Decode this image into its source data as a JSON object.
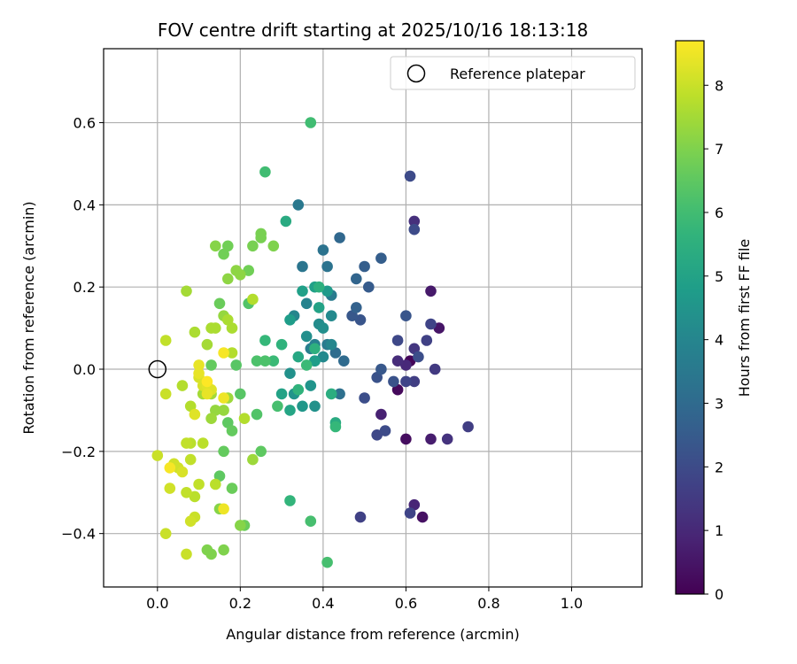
{
  "chart_data": {
    "type": "scatter",
    "title": "FOV centre drift starting at 2025/10/16 18:13:18",
    "xlabel": "Angular distance from reference (arcmin)",
    "ylabel": "Rotation from reference (arcmin)",
    "xlim": [
      -0.13,
      1.17
    ],
    "ylim": [
      -0.53,
      0.78
    ],
    "xticks": [
      0.0,
      0.2,
      0.4,
      0.6,
      0.8,
      1.0
    ],
    "xtick_labels": [
      "0.0",
      "0.2",
      "0.4",
      "0.6",
      "0.8",
      "1.0"
    ],
    "yticks": [
      -0.4,
      -0.2,
      0.0,
      0.2,
      0.4,
      0.6
    ],
    "ytick_labels": [
      "−0.4",
      "−0.2",
      "0.0",
      "0.2",
      "0.4",
      "0.6"
    ],
    "grid": true,
    "legend": {
      "label": "Reference platepar",
      "position": "upper-right"
    },
    "reference_point": {
      "x": 0.0,
      "y": 0.0
    },
    "colorbar": {
      "label": "Hours from first FF file",
      "range": [
        0,
        8.7
      ],
      "ticks": [
        0,
        1,
        2,
        3,
        4,
        5,
        6,
        7,
        8
      ],
      "tick_labels": [
        "0",
        "1",
        "2",
        "3",
        "4",
        "5",
        "6",
        "7",
        "8"
      ],
      "colormap": "viridis"
    },
    "points": [
      {
        "x": 0.61,
        "y": 0.02,
        "h": 0.1
      },
      {
        "x": 0.58,
        "y": -0.05,
        "h": 0.2
      },
      {
        "x": 0.6,
        "y": -0.17,
        "h": 0.3
      },
      {
        "x": 0.64,
        "y": -0.36,
        "h": 0.4
      },
      {
        "x": 0.68,
        "y": 0.1,
        "h": 0.5
      },
      {
        "x": 0.66,
        "y": 0.19,
        "h": 0.6
      },
      {
        "x": 0.66,
        "y": -0.17,
        "h": 0.7
      },
      {
        "x": 0.54,
        "y": -0.11,
        "h": 0.8
      },
      {
        "x": 0.62,
        "y": -0.33,
        "h": 0.9
      },
      {
        "x": 0.6,
        "y": 0.01,
        "h": 1.0
      },
      {
        "x": 0.58,
        "y": 0.02,
        "h": 1.1
      },
      {
        "x": 0.62,
        "y": 0.36,
        "h": 1.2
      },
      {
        "x": 0.7,
        "y": -0.17,
        "h": 1.3
      },
      {
        "x": 0.62,
        "y": 0.05,
        "h": 1.4
      },
      {
        "x": 0.67,
        "y": 0.0,
        "h": 1.5
      },
      {
        "x": 0.62,
        "y": -0.03,
        "h": 1.6
      },
      {
        "x": 0.75,
        "y": -0.14,
        "h": 1.6
      },
      {
        "x": 0.49,
        "y": -0.36,
        "h": 1.7
      },
      {
        "x": 0.65,
        "y": 0.07,
        "h": 1.7
      },
      {
        "x": 0.6,
        "y": -0.03,
        "h": 1.8
      },
      {
        "x": 0.66,
        "y": 0.11,
        "h": 1.8
      },
      {
        "x": 0.61,
        "y": -0.35,
        "h": 1.8
      },
      {
        "x": 0.58,
        "y": 0.07,
        "h": 1.9
      },
      {
        "x": 0.53,
        "y": -0.16,
        "h": 1.9
      },
      {
        "x": 0.55,
        "y": -0.15,
        "h": 2.0
      },
      {
        "x": 0.61,
        "y": 0.47,
        "h": 2.0
      },
      {
        "x": 0.62,
        "y": 0.34,
        "h": 2.0
      },
      {
        "x": 0.63,
        "y": 0.03,
        "h": 2.1
      },
      {
        "x": 0.5,
        "y": -0.07,
        "h": 2.1
      },
      {
        "x": 0.57,
        "y": -0.03,
        "h": 2.2
      },
      {
        "x": 0.53,
        "y": -0.02,
        "h": 2.2
      },
      {
        "x": 0.6,
        "y": 0.13,
        "h": 2.3
      },
      {
        "x": 0.49,
        "y": 0.12,
        "h": 2.3
      },
      {
        "x": 0.47,
        "y": 0.13,
        "h": 2.4
      },
      {
        "x": 0.54,
        "y": 0.0,
        "h": 2.4
      },
      {
        "x": 0.51,
        "y": 0.2,
        "h": 2.5
      },
      {
        "x": 0.5,
        "y": 0.25,
        "h": 2.6
      },
      {
        "x": 0.54,
        "y": 0.27,
        "h": 2.6
      },
      {
        "x": 0.48,
        "y": 0.15,
        "h": 2.7
      },
      {
        "x": 0.48,
        "y": 0.22,
        "h": 2.8
      },
      {
        "x": 0.44,
        "y": 0.32,
        "h": 2.9
      },
      {
        "x": 0.45,
        "y": 0.02,
        "h": 3.0
      },
      {
        "x": 0.43,
        "y": 0.04,
        "h": 3.1
      },
      {
        "x": 0.44,
        "y": -0.06,
        "h": 3.2
      },
      {
        "x": 0.41,
        "y": 0.25,
        "h": 3.3
      },
      {
        "x": 0.4,
        "y": 0.29,
        "h": 3.3
      },
      {
        "x": 0.35,
        "y": 0.25,
        "h": 3.4
      },
      {
        "x": 0.34,
        "y": 0.4,
        "h": 3.5
      },
      {
        "x": 0.42,
        "y": 0.18,
        "h": 3.6
      },
      {
        "x": 0.41,
        "y": 0.06,
        "h": 3.6
      },
      {
        "x": 0.37,
        "y": 0.05,
        "h": 3.7
      },
      {
        "x": 0.38,
        "y": 0.06,
        "h": 3.8
      },
      {
        "x": 0.36,
        "y": 0.16,
        "h": 3.9
      },
      {
        "x": 0.33,
        "y": 0.13,
        "h": 4.0
      },
      {
        "x": 0.42,
        "y": 0.06,
        "h": 4.0
      },
      {
        "x": 0.4,
        "y": 0.03,
        "h": 4.1
      },
      {
        "x": 0.42,
        "y": 0.13,
        "h": 4.1
      },
      {
        "x": 0.38,
        "y": 0.02,
        "h": 4.2
      },
      {
        "x": 0.39,
        "y": 0.11,
        "h": 4.2
      },
      {
        "x": 0.4,
        "y": 0.1,
        "h": 4.3
      },
      {
        "x": 0.36,
        "y": 0.08,
        "h": 4.3
      },
      {
        "x": 0.38,
        "y": -0.09,
        "h": 4.4
      },
      {
        "x": 0.32,
        "y": -0.01,
        "h": 4.4
      },
      {
        "x": 0.33,
        "y": -0.06,
        "h": 4.5
      },
      {
        "x": 0.37,
        "y": -0.04,
        "h": 4.5
      },
      {
        "x": 0.35,
        "y": -0.09,
        "h": 4.6
      },
      {
        "x": 0.41,
        "y": 0.19,
        "h": 4.7
      },
      {
        "x": 0.32,
        "y": 0.12,
        "h": 4.8
      },
      {
        "x": 0.38,
        "y": 0.02,
        "h": 4.8
      },
      {
        "x": 0.35,
        "y": 0.19,
        "h": 4.9
      },
      {
        "x": 0.38,
        "y": 0.2,
        "h": 4.9
      },
      {
        "x": 0.39,
        "y": 0.15,
        "h": 5.0
      },
      {
        "x": 0.3,
        "y": -0.06,
        "h": 5.0
      },
      {
        "x": 0.32,
        "y": -0.1,
        "h": 5.1
      },
      {
        "x": 0.34,
        "y": 0.03,
        "h": 5.2
      },
      {
        "x": 0.31,
        "y": 0.36,
        "h": 5.3
      },
      {
        "x": 0.43,
        "y": -0.13,
        "h": 5.3
      },
      {
        "x": 0.42,
        "y": -0.06,
        "h": 5.4
      },
      {
        "x": 0.38,
        "y": 0.05,
        "h": 5.5
      },
      {
        "x": 0.39,
        "y": 0.2,
        "h": 5.5
      },
      {
        "x": 0.3,
        "y": 0.06,
        "h": 5.6
      },
      {
        "x": 0.34,
        "y": -0.05,
        "h": 5.6
      },
      {
        "x": 0.32,
        "y": -0.32,
        "h": 5.7
      },
      {
        "x": 0.43,
        "y": -0.14,
        "h": 5.8
      },
      {
        "x": 0.26,
        "y": 0.07,
        "h": 5.8
      },
      {
        "x": 0.36,
        "y": 0.01,
        "h": 5.9
      },
      {
        "x": 0.28,
        "y": 0.02,
        "h": 5.9
      },
      {
        "x": 0.26,
        "y": 0.48,
        "h": 6.0
      },
      {
        "x": 0.37,
        "y": 0.6,
        "h": 6.0
      },
      {
        "x": 0.29,
        "y": -0.09,
        "h": 6.1
      },
      {
        "x": 0.41,
        "y": -0.47,
        "h": 6.1
      },
      {
        "x": 0.37,
        "y": -0.37,
        "h": 6.1
      },
      {
        "x": 0.24,
        "y": 0.02,
        "h": 6.2
      },
      {
        "x": 0.26,
        "y": 0.02,
        "h": 6.2
      },
      {
        "x": 0.22,
        "y": 0.16,
        "h": 6.3
      },
      {
        "x": 0.24,
        "y": -0.11,
        "h": 6.3
      },
      {
        "x": 0.2,
        "y": -0.06,
        "h": 6.4
      },
      {
        "x": 0.19,
        "y": 0.01,
        "h": 6.4
      },
      {
        "x": 0.25,
        "y": -0.2,
        "h": 6.5
      },
      {
        "x": 0.15,
        "y": -0.26,
        "h": 6.5
      },
      {
        "x": 0.17,
        "y": -0.13,
        "h": 6.5
      },
      {
        "x": 0.18,
        "y": -0.15,
        "h": 6.6
      },
      {
        "x": 0.16,
        "y": -0.2,
        "h": 6.6
      },
      {
        "x": 0.13,
        "y": 0.01,
        "h": 6.6
      },
      {
        "x": 0.21,
        "y": -0.38,
        "h": 6.7
      },
      {
        "x": 0.18,
        "y": -0.29,
        "h": 6.7
      },
      {
        "x": 0.15,
        "y": 0.16,
        "h": 6.7
      },
      {
        "x": 0.16,
        "y": 0.28,
        "h": 6.8
      },
      {
        "x": 0.17,
        "y": 0.3,
        "h": 6.8
      },
      {
        "x": 0.22,
        "y": 0.24,
        "h": 6.8
      },
      {
        "x": 0.23,
        "y": 0.3,
        "h": 6.9
      },
      {
        "x": 0.25,
        "y": 0.33,
        "h": 6.9
      },
      {
        "x": 0.25,
        "y": 0.32,
        "h": 6.9
      },
      {
        "x": 0.28,
        "y": 0.3,
        "h": 7.0
      },
      {
        "x": 0.13,
        "y": -0.45,
        "h": 7.0
      },
      {
        "x": 0.12,
        "y": -0.44,
        "h": 7.0
      },
      {
        "x": 0.16,
        "y": -0.44,
        "h": 7.0
      },
      {
        "x": 0.15,
        "y": -0.34,
        "h": 7.1
      },
      {
        "x": 0.2,
        "y": -0.38,
        "h": 7.1
      },
      {
        "x": 0.14,
        "y": 0.3,
        "h": 7.1
      },
      {
        "x": 0.2,
        "y": 0.23,
        "h": 7.2
      },
      {
        "x": 0.17,
        "y": 0.22,
        "h": 7.2
      },
      {
        "x": 0.19,
        "y": 0.24,
        "h": 7.2
      },
      {
        "x": 0.16,
        "y": 0.13,
        "h": 7.3
      },
      {
        "x": 0.14,
        "y": -0.1,
        "h": 7.3
      },
      {
        "x": 0.16,
        "y": -0.1,
        "h": 7.3
      },
      {
        "x": 0.17,
        "y": -0.07,
        "h": 7.4
      },
      {
        "x": 0.23,
        "y": -0.22,
        "h": 7.4
      },
      {
        "x": 0.13,
        "y": -0.12,
        "h": 7.4
      },
      {
        "x": 0.11,
        "y": -0.06,
        "h": 7.5
      },
      {
        "x": 0.13,
        "y": -0.06,
        "h": 7.5
      },
      {
        "x": 0.12,
        "y": 0.06,
        "h": 7.5
      },
      {
        "x": 0.07,
        "y": 0.19,
        "h": 7.5
      },
      {
        "x": 0.09,
        "y": 0.09,
        "h": 7.6
      },
      {
        "x": 0.13,
        "y": 0.1,
        "h": 7.6
      },
      {
        "x": 0.14,
        "y": 0.1,
        "h": 7.6
      },
      {
        "x": 0.17,
        "y": 0.12,
        "h": 7.6
      },
      {
        "x": 0.18,
        "y": 0.1,
        "h": 7.6
      },
      {
        "x": 0.18,
        "y": 0.04,
        "h": 7.7
      },
      {
        "x": 0.23,
        "y": 0.17,
        "h": 7.7
      },
      {
        "x": 0.21,
        "y": -0.12,
        "h": 7.7
      },
      {
        "x": 0.08,
        "y": -0.09,
        "h": 7.7
      },
      {
        "x": 0.06,
        "y": -0.04,
        "h": 7.7
      },
      {
        "x": 0.08,
        "y": -0.18,
        "h": 7.8
      },
      {
        "x": 0.11,
        "y": -0.18,
        "h": 7.8
      },
      {
        "x": 0.14,
        "y": -0.28,
        "h": 7.8
      },
      {
        "x": 0.09,
        "y": -0.31,
        "h": 7.8
      },
      {
        "x": 0.07,
        "y": -0.3,
        "h": 7.9
      },
      {
        "x": 0.08,
        "y": -0.22,
        "h": 7.9
      },
      {
        "x": 0.1,
        "y": -0.28,
        "h": 7.9
      },
      {
        "x": 0.07,
        "y": -0.18,
        "h": 7.9
      },
      {
        "x": 0.02,
        "y": 0.07,
        "h": 7.9
      },
      {
        "x": 0.02,
        "y": -0.06,
        "h": 8.0
      },
      {
        "x": 0.0,
        "y": -0.21,
        "h": 8.0
      },
      {
        "x": 0.02,
        "y": -0.4,
        "h": 8.0
      },
      {
        "x": 0.07,
        "y": -0.45,
        "h": 8.0
      },
      {
        "x": 0.09,
        "y": -0.36,
        "h": 8.0
      },
      {
        "x": 0.08,
        "y": -0.37,
        "h": 8.1
      },
      {
        "x": 0.03,
        "y": -0.29,
        "h": 8.1
      },
      {
        "x": 0.05,
        "y": -0.24,
        "h": 8.1
      },
      {
        "x": 0.04,
        "y": -0.23,
        "h": 8.1
      },
      {
        "x": 0.06,
        "y": -0.25,
        "h": 8.2
      },
      {
        "x": 0.1,
        "y": -0.02,
        "h": 8.2
      },
      {
        "x": 0.11,
        "y": -0.04,
        "h": 8.2
      },
      {
        "x": 0.12,
        "y": -0.04,
        "h": 8.3
      },
      {
        "x": 0.09,
        "y": -0.11,
        "h": 8.3
      },
      {
        "x": 0.13,
        "y": -0.05,
        "h": 8.3
      },
      {
        "x": 0.1,
        "y": 0.01,
        "h": 8.4
      },
      {
        "x": 0.1,
        "y": -0.01,
        "h": 8.4
      },
      {
        "x": 0.12,
        "y": -0.06,
        "h": 8.4
      },
      {
        "x": 0.16,
        "y": -0.07,
        "h": 8.5
      },
      {
        "x": 0.16,
        "y": -0.34,
        "h": 8.5
      },
      {
        "x": 0.16,
        "y": 0.04,
        "h": 8.6
      },
      {
        "x": 0.03,
        "y": -0.24,
        "h": 8.6
      },
      {
        "x": 0.12,
        "y": -0.03,
        "h": 8.7
      }
    ]
  }
}
